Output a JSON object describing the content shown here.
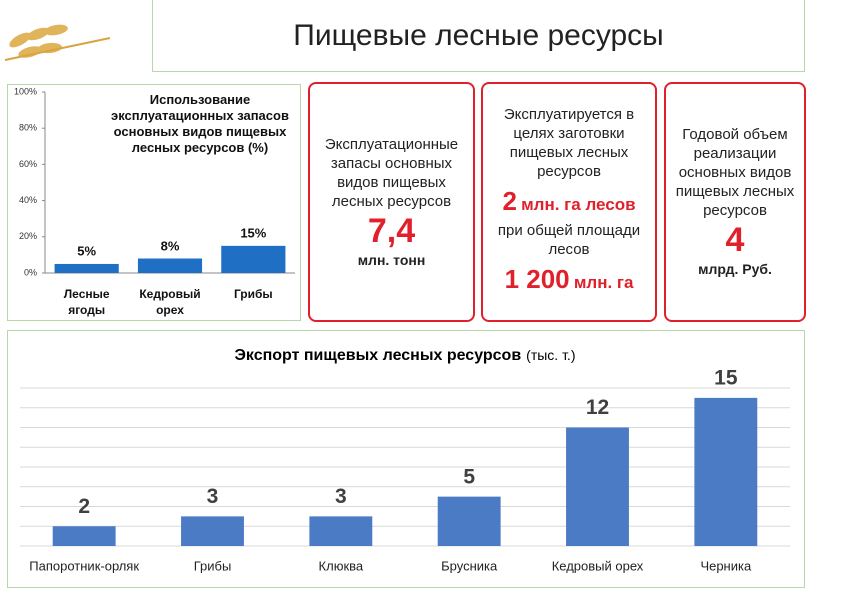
{
  "header": {
    "title": "Пищевые лесные ресурсы"
  },
  "cards": [
    {
      "text": "Эксплуатационные запасы основных видов пищевых лесных ресурсов",
      "value": "7,4",
      "unit": "млн. тонн"
    },
    {
      "text": "Эксплуатируется в целях заготовки пищевых лесных ресурсов",
      "value": "2",
      "unit": "млн. га лесов",
      "text2": "при общей площади лесов",
      "value2": "1 200",
      "unit2": "млн. га"
    },
    {
      "text": "Годовой объем реализации основных видов пищевых лесных ресурсов",
      "value": "4",
      "unit": "млрд. Руб."
    }
  ],
  "chart_data": [
    {
      "type": "bar",
      "title": "Использование эксплуатационных запасов основных видов пищевых лесных ресурсов (%)",
      "categories": [
        "Лесные ягоды",
        "Кедровый орех",
        "Грибы"
      ],
      "values": [
        5,
        8,
        15
      ],
      "value_labels": [
        "5%",
        "8%",
        "15%"
      ],
      "color": "#1f6fc5",
      "ylim": [
        0,
        100
      ],
      "yticks": [
        {
          "value": 0,
          "label": "0%"
        },
        {
          "value": 20,
          "label": "20%"
        },
        {
          "value": 40,
          "label": "40%"
        },
        {
          "value": 60,
          "label": "60%"
        },
        {
          "value": 80,
          "label": "80%"
        },
        {
          "value": 100,
          "label": "100%"
        }
      ],
      "grid": false,
      "tick_labels": true
    },
    {
      "type": "bar",
      "title": "Экспорт пищевых лесных ресурсов",
      "subtitle": "(тыс. т.)",
      "categories": [
        "Папоротник-орляк",
        "Грибы",
        "Клюква",
        "Брусника",
        "Кедровый орех",
        "Черника"
      ],
      "values": [
        2,
        3,
        3,
        5,
        12,
        15
      ],
      "color": "#4a7bc4",
      "ylim": [
        0,
        16
      ],
      "yticks": [
        0,
        2,
        4,
        6,
        8,
        10,
        12,
        14,
        16
      ],
      "grid": true,
      "tick_labels": false
    }
  ]
}
